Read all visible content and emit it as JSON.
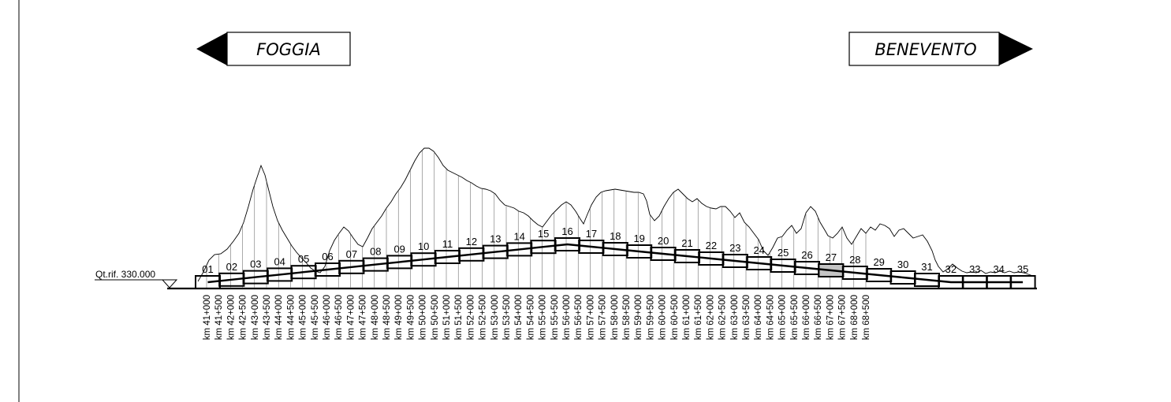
{
  "directions": {
    "left": "FOGGIA",
    "right": "BENEVENTO"
  },
  "reference_level": "Qt.rif. 330.000",
  "segments": [
    "01",
    "02",
    "03",
    "04",
    "05",
    "06",
    "07",
    "08",
    "09",
    "10",
    "11",
    "12",
    "13",
    "14",
    "15",
    "16",
    "17",
    "18",
    "19",
    "20",
    "21",
    "22",
    "23",
    "24",
    "25",
    "26",
    "27",
    "28",
    "29",
    "30",
    "31",
    "32",
    "33",
    "34",
    "35"
  ],
  "highlighted_segment": "27",
  "chainages": [
    "km 41+000",
    "km 41+500",
    "km 42+000",
    "km 42+500",
    "km 43+000",
    "km 43+500",
    "km 44+000",
    "km 44+500",
    "km 45+000",
    "km 45+500",
    "km 46+000",
    "km 46+500",
    "km 47+000",
    "km 47+500",
    "km 48+000",
    "km 48+500",
    "km 49+000",
    "km 49+500",
    "km 50+000",
    "km 50+500",
    "km 51+000",
    "km 51+500",
    "km 52+000",
    "km 52+500",
    "km 53+000",
    "km 53+500",
    "km 54+000",
    "km 54+500",
    "km 55+000",
    "km 55+500",
    "km 56+000",
    "km 56+500",
    "km 57+000",
    "km 57+500",
    "km 58+000",
    "km 58+500",
    "km 59+000",
    "km 59+500",
    "km 60+000",
    "km 60+500",
    "km 61+000",
    "km 61+500",
    "km 62+000",
    "km 62+500",
    "km 63+000",
    "km 63+500",
    "km 64+000",
    "km 64+500",
    "km 65+000",
    "km 65+500",
    "km 66+000",
    "km 66+500",
    "km 67+000",
    "km 67+500",
    "km 68+000",
    "km 68+500"
  ]
}
